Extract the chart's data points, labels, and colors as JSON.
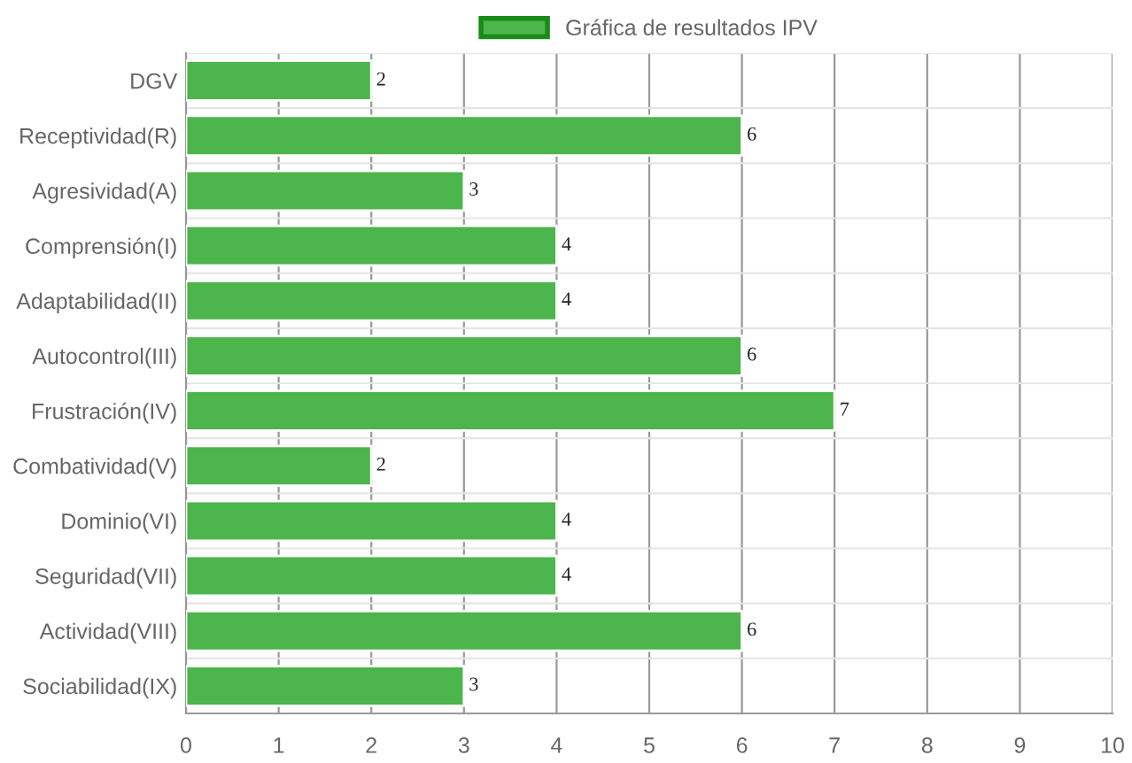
{
  "chart_data": {
    "type": "bar",
    "orientation": "horizontal",
    "categories": [
      "DGV",
      "Receptividad(R)",
      "Agresividad(A)",
      "Comprensión(I)",
      "Adaptabilidad(II)",
      "Autocontrol(III)",
      "Frustración(IV)",
      "Combatividad(V)",
      "Dominio(VI)",
      "Seguridad(VII)",
      "Actividad(VIII)",
      "Sociabilidad(IX)"
    ],
    "series": [
      {
        "name": "Gráfica de resultados IPV",
        "color": "#4cb54c",
        "values": [
          2,
          6,
          3,
          4,
          4,
          6,
          7,
          2,
          4,
          4,
          6,
          3
        ]
      }
    ],
    "xlim": [
      0,
      10
    ],
    "xticks": [
      0,
      1,
      2,
      3,
      4,
      5,
      6,
      7,
      8,
      9,
      10
    ],
    "grid": true,
    "legend": "top",
    "data_labels": true
  }
}
